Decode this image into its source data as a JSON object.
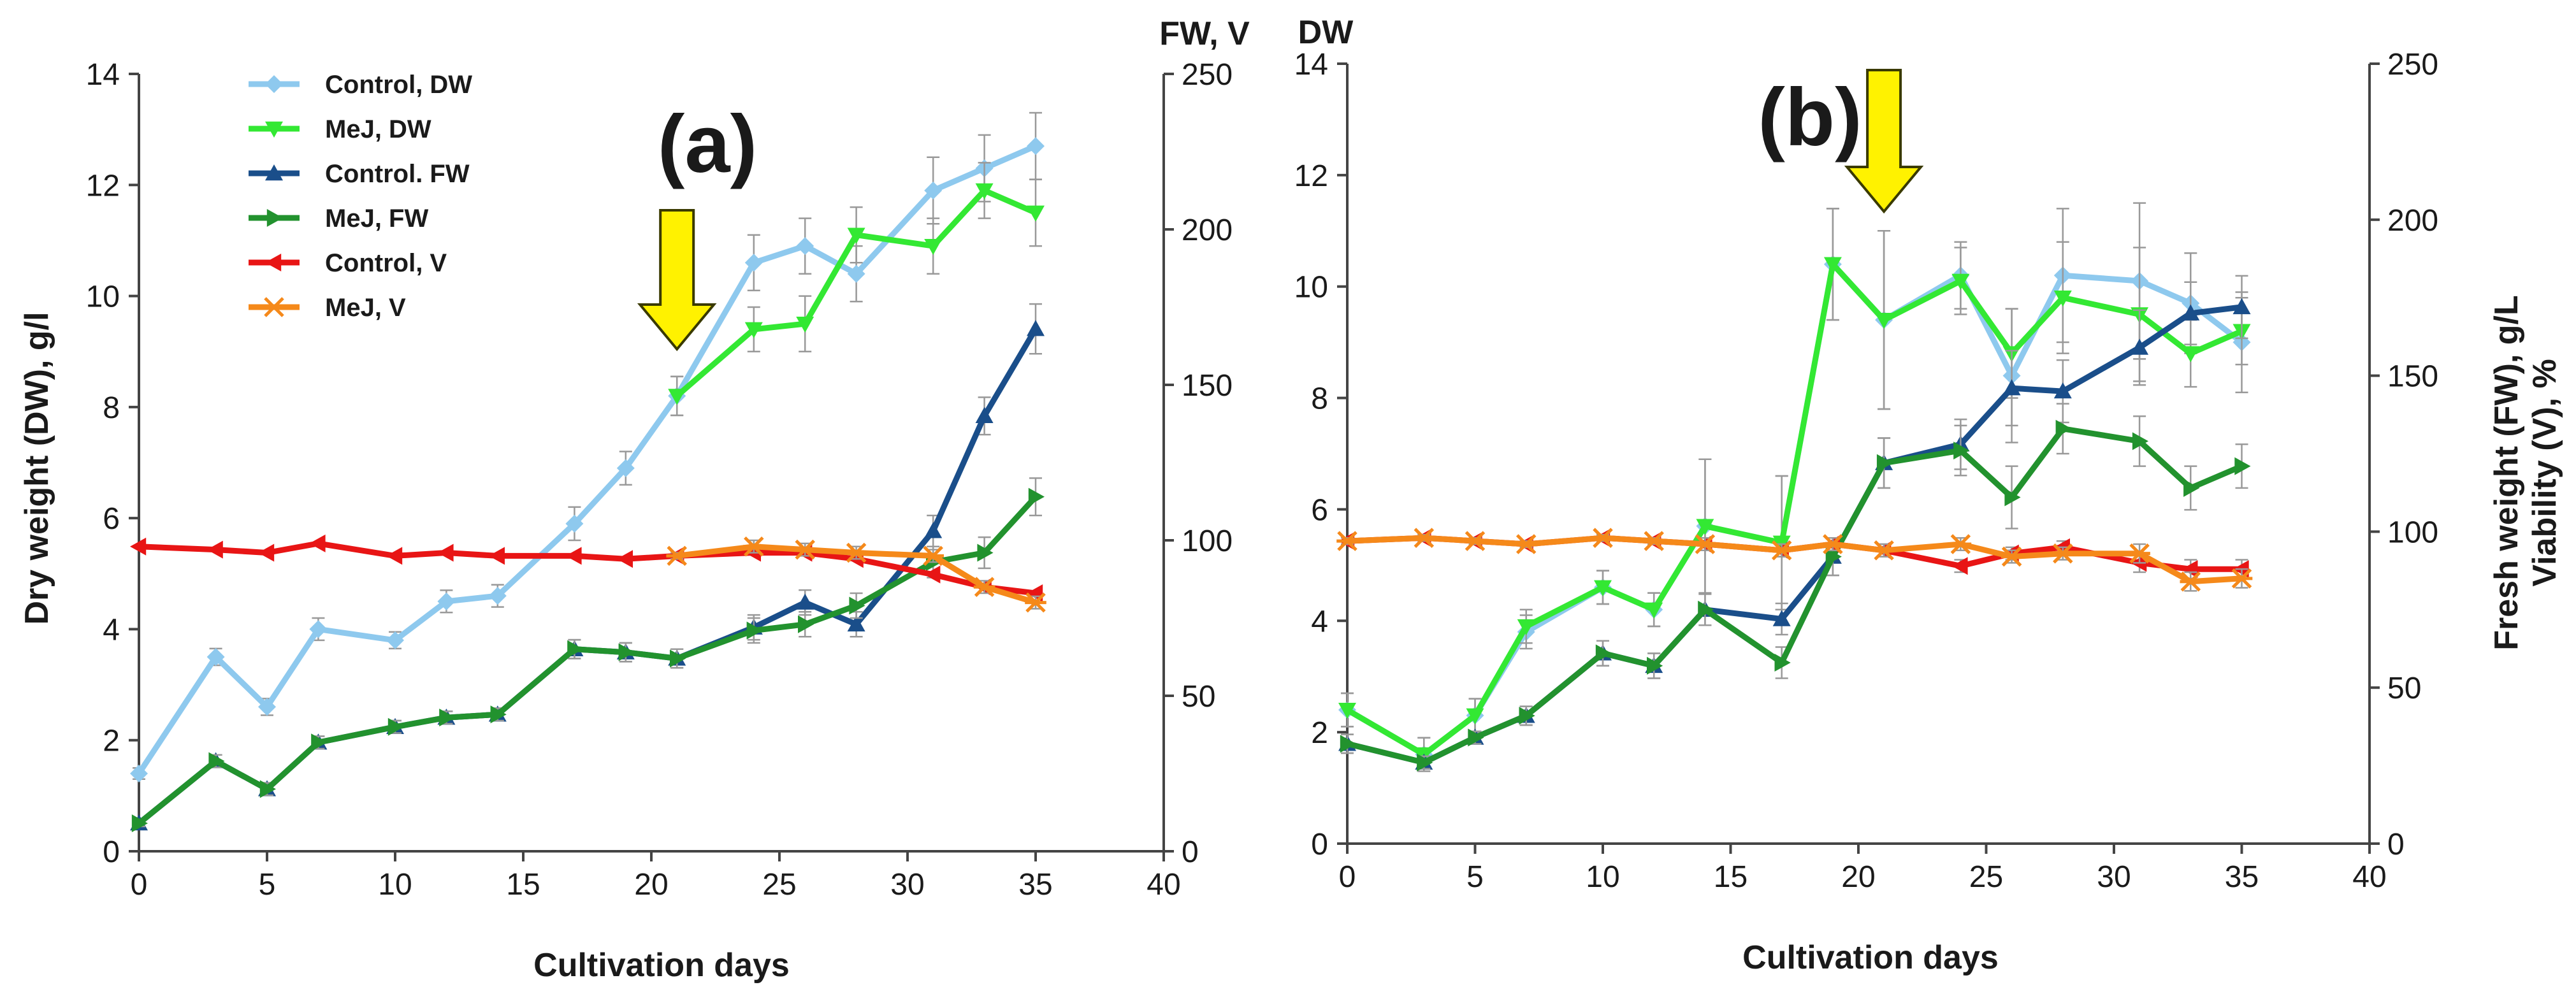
{
  "colors": {
    "control_dw": "#8ec9ee",
    "mej_dw": "#33e833",
    "control_fw": "#1a4e8a",
    "mej_fw": "#22922e",
    "control_v": "#e81515",
    "mej_v": "#f5891a",
    "arrow": "#fff200",
    "arrow_stroke": "#3a3a00",
    "error_bar": "#999999"
  },
  "chart_data": [
    {
      "type": "line",
      "panel_label": "(a)",
      "xlabel": "Cultivation days",
      "ylabel_left": "Dry weight (DW), g/l",
      "ylabel_right": "FW, V",
      "x_range": [
        0,
        40
      ],
      "x_ticks": [
        "0",
        "5",
        "10",
        "15",
        "20",
        "25",
        "30",
        "35",
        "40"
      ],
      "y_left_range": [
        0,
        14
      ],
      "y_left_ticks": [
        "0",
        "2",
        "4",
        "6",
        "8",
        "10",
        "12",
        "14"
      ],
      "y_right_range": [
        0,
        250
      ],
      "y_right_ticks": [
        "0",
        "50",
        "100",
        "150",
        "200",
        "250"
      ],
      "arrow_day": 21,
      "legend": [
        "Control, DW",
        "MeJ, DW",
        "Control. FW",
        "MeJ, FW",
        "Control, V",
        "MeJ, V"
      ],
      "series": [
        {
          "name": "Control, DW",
          "key": "control_dw",
          "axis": "left",
          "marker": "diamond",
          "x": [
            0,
            3,
            5,
            7,
            10,
            12,
            14,
            17,
            19,
            21,
            24,
            26,
            28,
            31,
            33,
            35
          ],
          "y": [
            1.4,
            3.5,
            2.6,
            4.0,
            3.8,
            4.5,
            4.6,
            5.9,
            6.9,
            8.2,
            10.6,
            10.9,
            10.4,
            11.9,
            12.3,
            12.7
          ],
          "err": [
            0.1,
            0.15,
            0.15,
            0.2,
            0.15,
            0.2,
            0.2,
            0.3,
            0.3,
            0.35,
            0.5,
            0.5,
            0.5,
            0.6,
            0.6,
            0.6
          ]
        },
        {
          "name": "MeJ, DW",
          "key": "mej_dw",
          "axis": "left",
          "marker": "tri-down",
          "x": [
            21,
            24,
            26,
            28,
            31,
            33,
            35
          ],
          "y": [
            8.2,
            9.4,
            9.5,
            11.1,
            10.9,
            11.9,
            11.5
          ],
          "err": [
            0.35,
            0.4,
            0.5,
            0.5,
            0.5,
            0.5,
            0.6
          ]
        },
        {
          "name": "Control. FW",
          "key": "control_fw",
          "axis": "right",
          "marker": "tri-up",
          "x": [
            0,
            3,
            5,
            7,
            10,
            12,
            14,
            17,
            19,
            21,
            24,
            26,
            28,
            31,
            33,
            35
          ],
          "y": [
            9,
            29,
            20,
            35,
            40,
            43,
            44,
            65,
            64,
            62,
            72,
            80,
            73,
            103,
            140,
            168
          ],
          "err": [
            1,
            2,
            2,
            2,
            2,
            2,
            2,
            3,
            3,
            3,
            4,
            4,
            4,
            5,
            6,
            8
          ]
        },
        {
          "name": "MeJ, FW",
          "key": "mej_fw",
          "axis": "right",
          "marker": "tri-right",
          "x": [
            0,
            3,
            5,
            7,
            10,
            12,
            14,
            17,
            19,
            21,
            24,
            26,
            28,
            31,
            33,
            35
          ],
          "y": [
            9,
            29,
            20,
            35,
            40,
            43,
            44,
            65,
            64,
            62,
            71,
            73,
            79,
            93,
            96,
            114
          ],
          "err": [
            1,
            2,
            2,
            2,
            2,
            2,
            2,
            3,
            3,
            3,
            4,
            4,
            4,
            5,
            5,
            6
          ]
        },
        {
          "name": "Control, V",
          "key": "control_v",
          "axis": "right",
          "marker": "tri-left",
          "x": [
            0,
            3,
            5,
            7,
            10,
            12,
            14,
            17,
            19,
            21,
            24,
            26,
            28,
            31,
            33,
            35
          ],
          "y": [
            98,
            97,
            96,
            99,
            95,
            96,
            95,
            95,
            94,
            95,
            96,
            96,
            94,
            89,
            85,
            83
          ],
          "err": [
            0,
            0,
            0,
            0,
            0,
            0,
            0,
            0,
            0,
            0,
            0,
            0,
            0,
            0,
            0,
            0
          ]
        },
        {
          "name": "MeJ, V",
          "key": "mej_v",
          "axis": "right",
          "marker": "x",
          "x": [
            21,
            24,
            26,
            28,
            31,
            33,
            35
          ],
          "y": [
            95,
            98,
            97,
            96,
            95,
            85,
            80
          ],
          "err": [
            1,
            2,
            2,
            2,
            2,
            2,
            2
          ]
        }
      ]
    },
    {
      "type": "line",
      "panel_label": "(b)",
      "xlabel": "Cultivation days",
      "ylabel_left": "DW",
      "ylabel_right": "Fresh weight (FW), g/L",
      "ylabel_right_2": "Viability (V), %",
      "x_range": [
        0,
        40
      ],
      "x_ticks": [
        "0",
        "5",
        "10",
        "15",
        "20",
        "25",
        "30",
        "35",
        "40"
      ],
      "y_left_range": [
        0,
        14
      ],
      "y_left_ticks": [
        "0",
        "2",
        "4",
        "6",
        "8",
        "10",
        "12",
        "14"
      ],
      "y_right_range": [
        0,
        250
      ],
      "y_right_ticks": [
        "0",
        "50",
        "100",
        "150",
        "200",
        "250"
      ],
      "arrow_day": 21,
      "series": [
        {
          "name": "Control, DW",
          "key": "control_dw",
          "axis": "left",
          "marker": "diamond",
          "x": [
            0,
            3,
            5,
            7,
            10,
            12,
            14,
            17,
            19,
            21,
            24,
            26,
            28,
            31,
            33,
            35
          ],
          "y": [
            2.4,
            1.6,
            2.3,
            3.8,
            4.6,
            4.2,
            5.7,
            5.4,
            10.4,
            9.4,
            10.2,
            8.4,
            10.2,
            10.1,
            9.7,
            9.0
          ],
          "err": [
            0.3,
            0.3,
            0.3,
            0.3,
            0.3,
            0.3,
            1.2,
            1.2,
            1.0,
            1.6,
            0.6,
            1.2,
            1.2,
            1.4,
            0.9,
            0.9
          ]
        },
        {
          "name": "MeJ, DW",
          "key": "mej_dw",
          "axis": "left",
          "marker": "tri-down",
          "x": [
            0,
            3,
            5,
            7,
            10,
            12,
            14,
            17,
            19,
            21,
            24,
            26,
            28,
            31,
            33,
            35
          ],
          "y": [
            2.4,
            1.6,
            2.3,
            3.9,
            4.6,
            4.2,
            5.7,
            5.4,
            10.4,
            9.4,
            10.1,
            8.8,
            9.8,
            9.5,
            8.8,
            9.2
          ],
          "err": [
            0.3,
            0.3,
            0.3,
            0.3,
            0.3,
            0.3,
            1.2,
            1.2,
            1.0,
            1.6,
            0.6,
            0.8,
            1.0,
            1.2,
            0.6,
            0.6
          ]
        },
        {
          "name": "Control. FW",
          "key": "control_fw",
          "axis": "right",
          "marker": "tri-up",
          "x": [
            0,
            3,
            5,
            7,
            10,
            12,
            14,
            17,
            19,
            21,
            24,
            26,
            28,
            31,
            33,
            35
          ],
          "y": [
            32,
            26,
            34,
            41,
            61,
            57,
            75,
            72,
            92,
            122,
            128,
            146,
            145,
            159,
            170,
            172
          ],
          "err": [
            3,
            2,
            2,
            3,
            4,
            4,
            5,
            5,
            6,
            8,
            8,
            12,
            10,
            12,
            10,
            10
          ]
        },
        {
          "name": "MeJ, FW",
          "key": "mej_fw",
          "axis": "right",
          "marker": "tri-right",
          "x": [
            0,
            3,
            5,
            7,
            10,
            12,
            14,
            17,
            19,
            21,
            24,
            26,
            28,
            31,
            33,
            35
          ],
          "y": [
            32,
            26,
            34,
            41,
            61,
            57,
            75,
            58,
            92,
            122,
            126,
            111,
            133,
            129,
            114,
            121
          ],
          "err": [
            3,
            2,
            2,
            3,
            4,
            4,
            5,
            5,
            6,
            8,
            8,
            10,
            8,
            8,
            7,
            7
          ]
        },
        {
          "name": "Control, V",
          "key": "control_v",
          "axis": "right",
          "marker": "tri-left",
          "x": [
            0,
            3,
            5,
            7,
            10,
            12,
            14,
            17,
            19,
            21,
            24,
            26,
            28,
            31,
            33,
            35
          ],
          "y": [
            97,
            98,
            97,
            96,
            98,
            97,
            96,
            94,
            96,
            94,
            89,
            93,
            95,
            90,
            88,
            88
          ],
          "err": [
            1,
            1,
            1,
            1,
            1,
            1,
            2,
            2,
            2,
            2,
            2,
            2,
            2,
            3,
            3,
            3
          ]
        },
        {
          "name": "MeJ, V",
          "key": "mej_v",
          "axis": "right",
          "marker": "x",
          "x": [
            0,
            3,
            5,
            7,
            10,
            12,
            14,
            17,
            19,
            21,
            24,
            26,
            28,
            31,
            33,
            35
          ],
          "y": [
            97,
            98,
            97,
            96,
            98,
            97,
            96,
            94,
            96,
            94,
            96,
            92,
            93,
            93,
            84,
            85
          ],
          "err": [
            1,
            1,
            1,
            1,
            1,
            1,
            2,
            2,
            2,
            2,
            2,
            2,
            2,
            3,
            3,
            3
          ]
        }
      ]
    }
  ]
}
